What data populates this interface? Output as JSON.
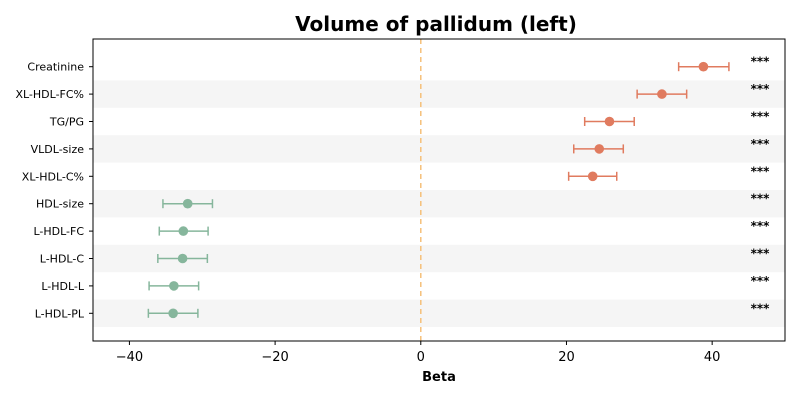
{
  "chart_data": {
    "type": "forest",
    "title": "Volume of pallidum (left)",
    "xlabel": "Beta",
    "xlim": [
      -45,
      50
    ],
    "xticks": [
      -40,
      -20,
      0,
      20,
      40
    ],
    "xtick_labels": [
      "−40",
      "−20",
      "0",
      "20",
      "40"
    ],
    "reference_line": 0,
    "colors": {
      "positive": "#e07b5f",
      "negative": "#86b69c",
      "reference": "#f5c07a",
      "band": "#f5f5f5"
    },
    "rows": [
      {
        "label": "Creatinine",
        "beta": 38.8,
        "lo": 35.4,
        "hi": 42.3,
        "sig": "***"
      },
      {
        "label": "XL-HDL-FC%",
        "beta": 33.1,
        "lo": 29.7,
        "hi": 36.5,
        "sig": "***"
      },
      {
        "label": "TG/PG",
        "beta": 25.9,
        "lo": 22.5,
        "hi": 29.3,
        "sig": "***"
      },
      {
        "label": "VLDL-size",
        "beta": 24.5,
        "lo": 21.0,
        "hi": 27.8,
        "sig": "***"
      },
      {
        "label": "XL-HDL-C%",
        "beta": 23.6,
        "lo": 20.3,
        "hi": 26.9,
        "sig": "***"
      },
      {
        "label": "HDL-size",
        "beta": -32.0,
        "lo": -35.4,
        "hi": -28.6,
        "sig": "***"
      },
      {
        "label": "L-HDL-FC",
        "beta": -32.6,
        "lo": -35.9,
        "hi": -29.2,
        "sig": "***"
      },
      {
        "label": "L-HDL-C",
        "beta": -32.7,
        "lo": -36.1,
        "hi": -29.3,
        "sig": "***"
      },
      {
        "label": "L-HDL-L",
        "beta": -33.9,
        "lo": -37.3,
        "hi": -30.5,
        "sig": "***"
      },
      {
        "label": "L-HDL-PL",
        "beta": -34.0,
        "lo": -37.4,
        "hi": -30.6,
        "sig": "***"
      }
    ]
  }
}
